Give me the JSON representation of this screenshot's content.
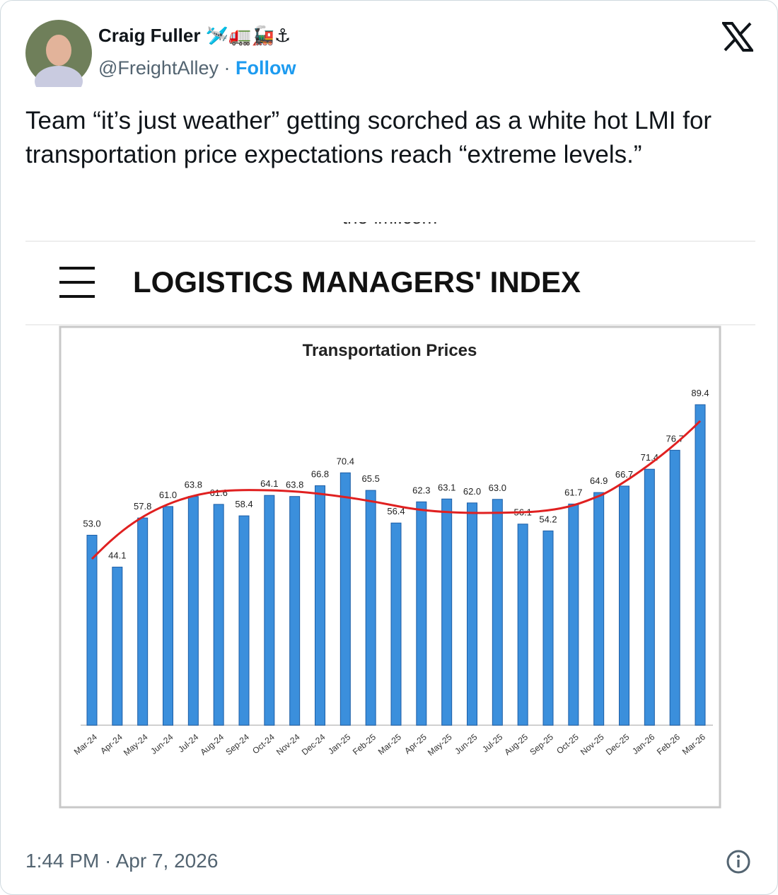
{
  "tweet": {
    "author_name": "Craig Fuller 🛩️🚛🚂⚓",
    "handle": "@FreightAlley",
    "separator": "·",
    "follow": "Follow",
    "text": "Team “it’s just weather” getting scorched as a white hot LMI for transportation price expectations reach “extreme levels.”",
    "timestamp": "1:44 PM · Apr 7, 2026"
  },
  "image": {
    "source_url": "the-lmi.com",
    "header_title": "LOGISTICS MANAGERS' INDEX"
  },
  "chart_data": {
    "type": "bar",
    "title": "Transportation Prices",
    "color": "#3b8fdc",
    "categories": [
      "Mar-24",
      "Apr-24",
      "May-24",
      "Jun-24",
      "Jul-24",
      "Aug-24",
      "Sep-24",
      "Oct-24",
      "Nov-24",
      "Dec-24",
      "Jan-25",
      "Feb-25",
      "Mar-25",
      "Apr-25",
      "May-25",
      "Jun-25",
      "Jul-25",
      "Aug-25",
      "Sep-25",
      "Oct-25",
      "Nov-25",
      "Dec-25",
      "Jan-26",
      "Feb-26",
      "Mar-26"
    ],
    "values": [
      53.0,
      44.1,
      57.8,
      61.0,
      63.8,
      61.6,
      58.4,
      64.1,
      63.8,
      66.8,
      70.4,
      65.5,
      56.4,
      62.3,
      63.1,
      62.0,
      63.0,
      56.1,
      54.2,
      61.7,
      64.9,
      66.7,
      71.4,
      76.7,
      89.4
    ],
    "value_labels": [
      "53.0",
      "44.1",
      "57.8",
      "61.0",
      "63.8",
      "61.6",
      "58.4",
      "64.1",
      "63.8",
      "66.8",
      "70.4",
      "65.5",
      "56.4",
      "62.3",
      "63.1",
      "62.0",
      "63.0",
      "56.1",
      "54.2",
      "61.7",
      "64.9",
      "66.7",
      "71.4",
      "76.7",
      "89.4"
    ]
  }
}
